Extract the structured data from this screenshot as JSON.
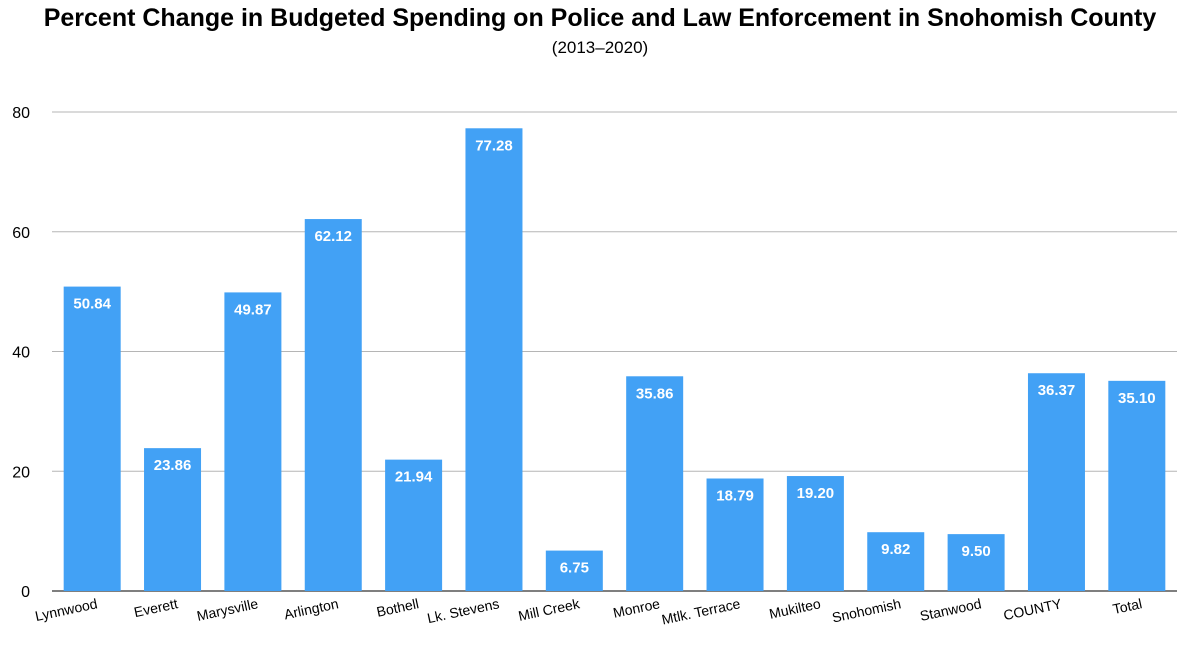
{
  "chart_data": {
    "type": "bar",
    "title": "Percent Change in Budgeted Spending on Police and Law Enforcement in Snohomish County",
    "subtitle": "(2013–2020)",
    "xlabel": "",
    "ylabel": "",
    "ylim": [
      0,
      80
    ],
    "yticks": [
      0,
      20,
      40,
      60,
      80
    ],
    "grid": true,
    "legend": "none",
    "bar_color": "#42a1f5",
    "categories": [
      "Lynnwood",
      "Everett",
      "Marysville",
      "Arlington",
      "Bothell",
      "Lk. Stevens",
      "Mill Creek",
      "Monroe",
      "Mtlk. Terrace",
      "Mukilteo",
      "Snohomish",
      "Stanwood",
      "COUNTY",
      "Total"
    ],
    "values": [
      50.84,
      23.86,
      49.87,
      62.12,
      21.94,
      77.28,
      6.75,
      35.86,
      18.79,
      19.2,
      9.82,
      9.5,
      36.37,
      35.1
    ],
    "value_labels": [
      "50.84",
      "23.86",
      "49.87",
      "62.12",
      "21.94",
      "77.28",
      "6.75",
      "35.86",
      "18.79",
      "19.20",
      "9.82",
      "9.50",
      "36.37",
      "35.10"
    ]
  }
}
